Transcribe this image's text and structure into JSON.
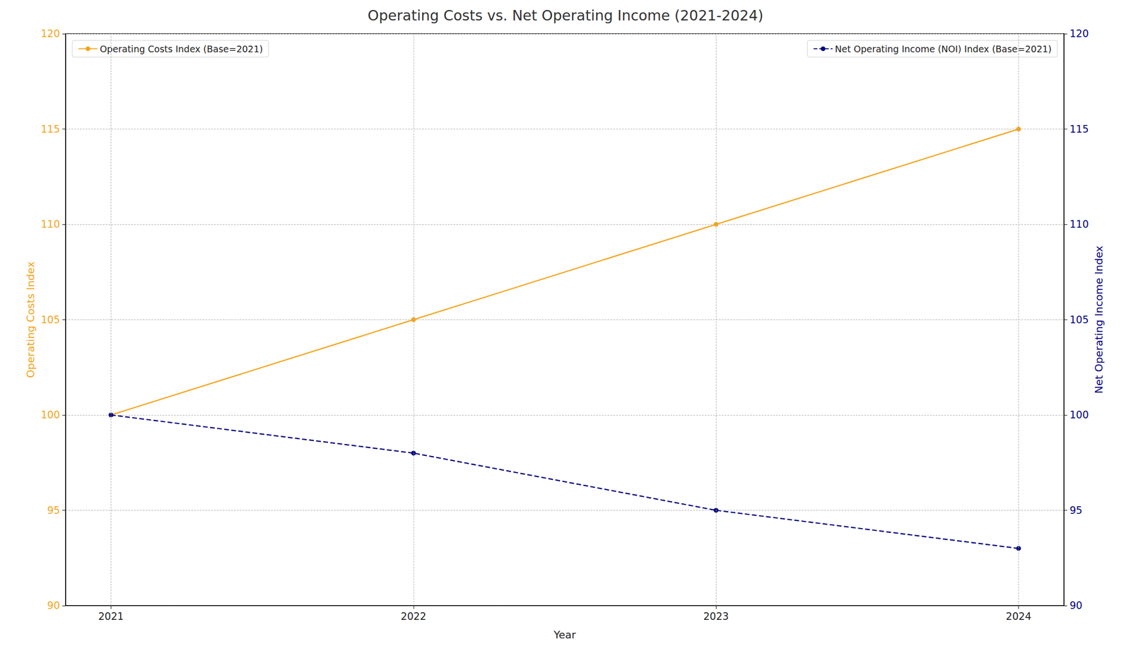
{
  "chart_data": {
    "type": "line",
    "title": "Operating Costs vs. Net Operating Income (2021-2024)",
    "x_label": "Year",
    "y_label": "Operating Costs Index",
    "y2_label": "Net Operating Income Index",
    "x": [
      2021,
      2022,
      2023,
      2024
    ],
    "xlim": [
      2020.85,
      2024.15
    ],
    "xticks": [
      2021,
      2022,
      2023,
      2024
    ],
    "ylim": [
      90,
      120
    ],
    "yticks": [
      90,
      95,
      100,
      105,
      110,
      115,
      120
    ],
    "y2lim": [
      90,
      120
    ],
    "y2ticks": [
      90,
      95,
      100,
      105,
      110,
      115,
      120
    ],
    "grid": true,
    "series": [
      {
        "name": "Operating Costs Index (Base=2021)",
        "color": "#f5a31a",
        "values": [
          100,
          105,
          110,
          115
        ],
        "marker": "circle",
        "line_style": "solid",
        "legend": "upper left"
      },
      {
        "name": "Net Operating Income (NOI) Index (Base=2021)",
        "color": "#000080",
        "values": [
          100,
          98,
          95,
          93
        ],
        "axis": "y2",
        "marker": "circle",
        "line_style": "dashed",
        "legend": "upper right"
      }
    ]
  }
}
